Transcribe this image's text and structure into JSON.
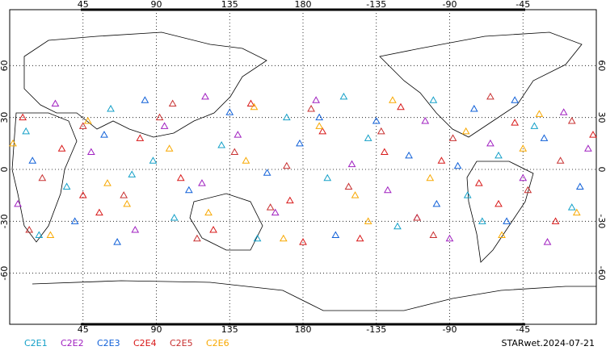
{
  "chart_data": {
    "type": "scatter",
    "title": "STARwet.2024-07-21",
    "xlim": [
      0,
      360
    ],
    "ylim": [
      -90,
      90
    ],
    "xticks": [
      45,
      90,
      135,
      180,
      {
        "value": 225,
        "label": "-135"
      },
      {
        "value": 270,
        "label": "-90"
      },
      {
        "value": 315,
        "label": "-45"
      }
    ],
    "yticks": [
      60,
      30,
      0,
      -30,
      -60
    ],
    "grid": true,
    "series": [
      {
        "name": "C2E1",
        "color": "#14a0c8",
        "x": [
          10,
          35,
          62,
          88,
          101,
          130,
          152,
          170,
          195,
          220,
          238,
          260,
          281,
          300,
          322,
          345,
          18,
          75,
          205,
          290
        ],
        "y": [
          22,
          -10,
          35,
          5,
          -28,
          14,
          -40,
          30,
          -5,
          18,
          -33,
          40,
          -15,
          8,
          25,
          -22,
          -38,
          -3,
          42,
          -30
        ]
      },
      {
        "name": "C2E2",
        "color": "#a020c0",
        "x": [
          5,
          28,
          50,
          77,
          95,
          118,
          140,
          163,
          188,
          210,
          232,
          255,
          270,
          295,
          315,
          340,
          355,
          120,
          250,
          330
        ],
        "y": [
          -20,
          38,
          10,
          -35,
          25,
          -8,
          20,
          -25,
          40,
          3,
          -12,
          28,
          -40,
          15,
          -5,
          33,
          12,
          42,
          -28,
          -42
        ]
      },
      {
        "name": "C2E3",
        "color": "#1060d8",
        "x": [
          14,
          40,
          58,
          83,
          110,
          135,
          158,
          178,
          200,
          225,
          245,
          262,
          285,
          305,
          328,
          350,
          66,
          190,
          275,
          310
        ],
        "y": [
          5,
          -30,
          20,
          40,
          -12,
          33,
          -2,
          15,
          -38,
          28,
          8,
          -20,
          35,
          -30,
          18,
          -10,
          -42,
          30,
          2,
          40
        ]
      },
      {
        "name": "C2E4",
        "color": "#d81818",
        "x": [
          8,
          32,
          55,
          80,
          105,
          125,
          148,
          172,
          192,
          215,
          240,
          265,
          288,
          310,
          335,
          358,
          45,
          180,
          230,
          300
        ],
        "y": [
          30,
          12,
          -25,
          18,
          -5,
          -35,
          38,
          -18,
          22,
          -40,
          36,
          5,
          -8,
          27,
          -30,
          20,
          -15,
          -42,
          10,
          -20
        ]
      },
      {
        "name": "C2E5",
        "color": "#c83030",
        "x": [
          20,
          45,
          70,
          92,
          115,
          138,
          160,
          185,
          208,
          228,
          250,
          272,
          295,
          318,
          338,
          12,
          100,
          170,
          260,
          345
        ],
        "y": [
          -5,
          25,
          -15,
          30,
          -40,
          10,
          -22,
          35,
          -10,
          22,
          -28,
          18,
          42,
          -12,
          5,
          -35,
          38,
          2,
          -38,
          28
        ]
      },
      {
        "name": "C2E6",
        "color": "#f8a800",
        "x": [
          2,
          25,
          48,
          72,
          98,
          122,
          145,
          168,
          190,
          212,
          235,
          258,
          280,
          302,
          325,
          348,
          60,
          150,
          220,
          315
        ],
        "y": [
          15,
          -38,
          28,
          -20,
          12,
          -25,
          5,
          -40,
          25,
          -15,
          40,
          -5,
          22,
          -38,
          32,
          -25,
          -8,
          36,
          -30,
          12
        ]
      }
    ]
  }
}
